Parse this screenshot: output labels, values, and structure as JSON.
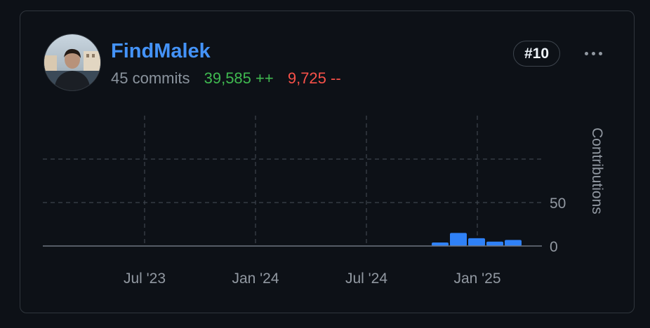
{
  "contributor": {
    "username": "FindMalek",
    "commits": "45 commits",
    "additions": "39,585 ++",
    "deletions": "9,725 --",
    "rank": "#10"
  },
  "colors": {
    "link": "#4493f8",
    "additions": "#3fb950",
    "deletions": "#f85149",
    "bar": "#2f81f7",
    "muted": "#8b949e"
  },
  "chart_data": {
    "type": "bar",
    "ylabel": "Contributions",
    "x_ticks": [
      "Jul '23",
      "Jan '24",
      "Jul '24",
      "Jan '25"
    ],
    "y_ticks": [
      "50",
      "0"
    ],
    "ylim": [
      0,
      100
    ],
    "grid": true,
    "categories": [
      "Nov '24",
      "Dec '24",
      "Jan '25",
      "Feb '25",
      "Mar '25"
    ],
    "values": [
      4,
      15,
      9,
      5,
      7
    ]
  }
}
